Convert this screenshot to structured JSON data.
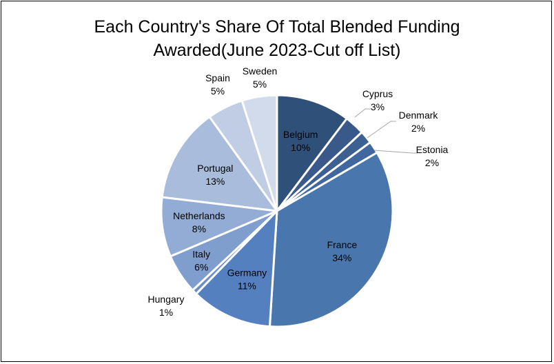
{
  "chart_data": {
    "type": "pie",
    "title_lines": [
      "Each Country's Share Of Total Blended Funding",
      "Awarded(June 2023-Cut off List)"
    ],
    "slices": [
      {
        "name": "Belgium",
        "pct_label": "10%",
        "value": 10.3,
        "color": "#2f5078"
      },
      {
        "name": "Cyprus",
        "pct_label": "3%",
        "value": 2.8,
        "color": "#38598a"
      },
      {
        "name": "Denmark",
        "pct_label": "2%",
        "value": 1.8,
        "color": "#3d6093"
      },
      {
        "name": "Estonia",
        "pct_label": "2%",
        "value": 1.7,
        "color": "#41679f"
      },
      {
        "name": "France",
        "pct_label": "34%",
        "value": 34.4,
        "color": "#4977ad"
      },
      {
        "name": "Germany",
        "pct_label": "11%",
        "value": 11.3,
        "color": "#5480bf"
      },
      {
        "name": "Hungary",
        "pct_label": "1%",
        "value": 0.7,
        "color": "#6d8fc5"
      },
      {
        "name": "Italy",
        "pct_label": "6%",
        "value": 5.6,
        "color": "#7f9dcd"
      },
      {
        "name": "Netherlands",
        "pct_label": "8%",
        "value": 8.3,
        "color": "#93acd5"
      },
      {
        "name": "Portugal",
        "pct_label": "13%",
        "value": 13.2,
        "color": "#a9bcdc"
      },
      {
        "name": "Spain",
        "pct_label": "5%",
        "value": 5.0,
        "color": "#c0cde4"
      },
      {
        "name": "Sweden",
        "pct_label": "5%",
        "value": 4.9,
        "color": "#d2dbeb"
      }
    ],
    "label_colors": {
      "inside": "#000000",
      "outside": "#000000"
    }
  }
}
